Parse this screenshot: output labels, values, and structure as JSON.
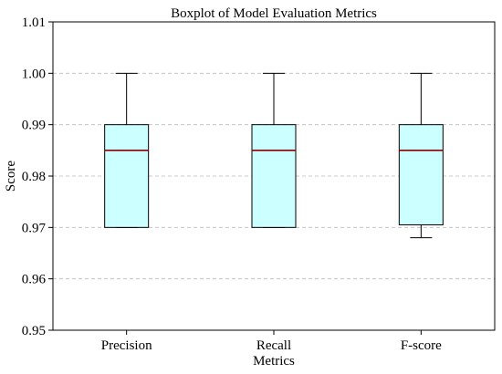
{
  "chart_data": {
    "type": "box",
    "title": "Boxplot of Model Evaluation Metrics",
    "xlabel": "Metrics",
    "ylabel": "Score",
    "ylim": [
      0.95,
      1.01
    ],
    "yticks": [
      0.95,
      0.96,
      0.97,
      0.98,
      0.99,
      1.0,
      1.01
    ],
    "ytick_labels": [
      "0.95",
      "0.96",
      "0.97",
      "0.98",
      "0.99",
      "1.00",
      "1.01"
    ],
    "grid": "horizontal dashed",
    "categories": [
      "Precision",
      "Recall",
      "F-score"
    ],
    "boxes": [
      {
        "label": "Precision",
        "whisker_low": 0.97,
        "q1": 0.97,
        "median": 0.985,
        "q3": 0.99,
        "whisker_high": 1.0
      },
      {
        "label": "Recall",
        "whisker_low": 0.97,
        "q1": 0.97,
        "median": 0.985,
        "q3": 0.99,
        "whisker_high": 1.0
      },
      {
        "label": "F-score",
        "whisker_low": 0.968,
        "q1": 0.9705,
        "median": 0.985,
        "q3": 0.99,
        "whisker_high": 1.0
      }
    ],
    "colors": {
      "box_fill": "#ccffff",
      "box_edge": "#000000",
      "median": "#8b0000",
      "grid": "#bbbbbb"
    }
  }
}
